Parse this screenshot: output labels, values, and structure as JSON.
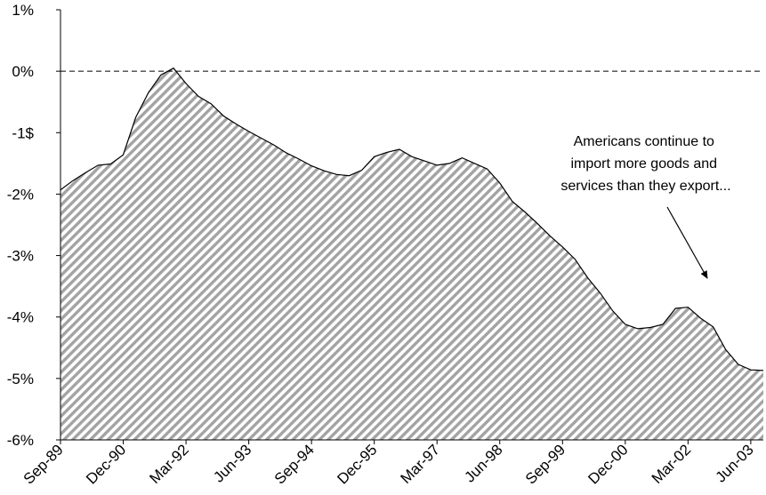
{
  "chart_data": {
    "type": "area",
    "title": "",
    "xlabel": "",
    "ylabel": "",
    "x_tick_labels": [
      "Sep-89",
      "Dec-90",
      "Mar-92",
      "Jun-93",
      "Sep-94",
      "Dec-95",
      "Mar-97",
      "Jun-98",
      "Sep-99",
      "Dec-00",
      "Mar-02",
      "Jun-03"
    ],
    "y_tick_labels": [
      "1%",
      "0%",
      "-1$",
      "-2%",
      "-3%",
      "-4%",
      "-5%",
      "-6%"
    ],
    "y_tick_values": [
      1,
      0,
      -1,
      -2,
      -3,
      -4,
      -5,
      -6
    ],
    "ylim": [
      -6,
      1
    ],
    "xlim": [
      "Sep-89",
      "Sep-03"
    ],
    "reference_line": {
      "y": 0,
      "style": "dashed"
    },
    "fill": "diagonal-hatch",
    "grid": false,
    "legend": "none",
    "series": [
      {
        "x": [
          "Sep-89",
          "Dec-89",
          "Mar-90",
          "Jun-90",
          "Sep-90",
          "Dec-90",
          "Mar-91",
          "Jun-91",
          "Sep-91",
          "Dec-91",
          "Mar-92",
          "Jun-92",
          "Sep-92",
          "Dec-92",
          "Mar-93",
          "Jun-93",
          "Sep-93",
          "Dec-93",
          "Mar-94",
          "Jun-94",
          "Sep-94",
          "Dec-94",
          "Mar-95",
          "Jun-95",
          "Sep-95",
          "Dec-95",
          "Mar-96",
          "Jun-96",
          "Sep-96",
          "Dec-96",
          "Mar-97",
          "Jun-97",
          "Sep-97",
          "Dec-97",
          "Mar-98",
          "Jun-98",
          "Sep-98",
          "Dec-98",
          "Mar-99",
          "Jun-99",
          "Sep-99",
          "Dec-99",
          "Mar-00",
          "Jun-00",
          "Sep-00",
          "Dec-00",
          "Mar-01",
          "Jun-01",
          "Sep-01",
          "Dec-01",
          "Mar-02",
          "Jun-02",
          "Sep-02",
          "Dec-02",
          "Mar-03",
          "Jun-03",
          "Sep-03"
        ],
        "values": [
          -1.93,
          -1.78,
          -1.65,
          -1.53,
          -1.51,
          -1.36,
          -0.75,
          -0.35,
          -0.06,
          0.05,
          -0.2,
          -0.41,
          -0.53,
          -0.73,
          -0.86,
          -0.98,
          -1.09,
          -1.2,
          -1.33,
          -1.43,
          -1.54,
          -1.62,
          -1.68,
          -1.7,
          -1.61,
          -1.39,
          -1.32,
          -1.27,
          -1.39,
          -1.46,
          -1.53,
          -1.5,
          -1.41,
          -1.5,
          -1.59,
          -1.82,
          -2.12,
          -2.29,
          -2.48,
          -2.68,
          -2.86,
          -3.06,
          -3.36,
          -3.61,
          -3.9,
          -4.12,
          -4.19,
          -4.17,
          -4.12,
          -3.86,
          -3.84,
          -4.02,
          -4.16,
          -4.53,
          -4.77,
          -4.86,
          -4.87
        ]
      }
    ],
    "annotation": {
      "lines": [
        "Americans continue to",
        "import more goods and",
        "services than they export..."
      ],
      "arrow": true
    }
  }
}
